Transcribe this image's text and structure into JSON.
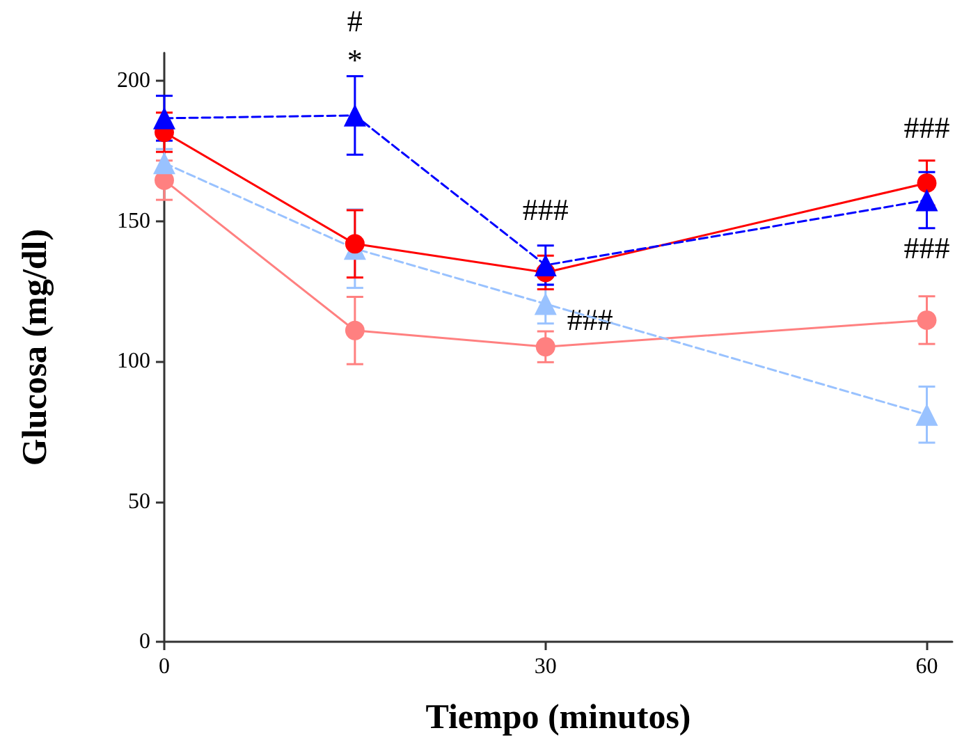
{
  "chart_data": {
    "type": "line",
    "xlabel": "Tiempo (minutos)",
    "ylabel": "Glucosa (mg/dl)",
    "x": [
      0,
      15,
      30,
      60
    ],
    "xlim": [
      0,
      62
    ],
    "xticks": [
      0,
      30,
      60
    ],
    "ylim": [
      0,
      210
    ],
    "yticks": [
      0,
      50,
      100,
      150,
      200
    ],
    "grid": false,
    "series": [
      {
        "color": "#ff8080",
        "marker": "circle",
        "line_style": "solid",
        "values": [
          164.6,
          111,
          105.2,
          114.7
        ],
        "errors": [
          7,
          12,
          5.5,
          8.5
        ]
      },
      {
        "color": "#99c2ff",
        "marker": "triangle",
        "line_style": "dashed",
        "values": [
          170.7,
          140.2,
          120.5,
          81
        ],
        "errors": [
          5,
          14,
          7,
          10
        ]
      },
      {
        "color": "#ff0000",
        "marker": "circle",
        "line_style": "solid",
        "values": [
          181.7,
          141.9,
          131.7,
          163.6
        ],
        "errors": [
          7,
          12,
          6,
          8
        ]
      },
      {
        "color": "#0000ff",
        "marker": "triangle",
        "line_style": "dashed",
        "values": [
          186.7,
          187.7,
          134.3,
          157.5
        ],
        "errors": [
          8,
          14,
          7,
          10
        ]
      }
    ],
    "annotations": [
      {
        "text": "#",
        "x": 15,
        "y": 187.7
      },
      {
        "text": "*",
        "x": 15,
        "y": 187.7
      },
      {
        "text": "###",
        "x": 30,
        "y": 134.3
      },
      {
        "text": "###",
        "x": 30,
        "y": 131.7
      },
      {
        "text": "###",
        "x": 60,
        "y": 163.6
      },
      {
        "text": "###",
        "x": 60,
        "y": 157.5
      }
    ]
  }
}
